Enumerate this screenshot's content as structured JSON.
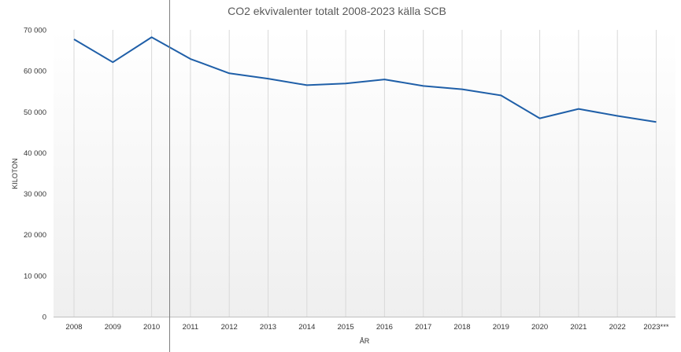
{
  "chart_data": {
    "type": "line",
    "title": "CO2 ekvivalenter totalt 2008-2023 källa SCB",
    "xlabel": "ÅR",
    "ylabel": "KILOTON",
    "categories": [
      "2008",
      "2009",
      "2010",
      "2011",
      "2012",
      "2013",
      "2014",
      "2015",
      "2016",
      "2017",
      "2018",
      "2019",
      "2020",
      "2021",
      "2022",
      "2023***"
    ],
    "series": [
      {
        "values": [
          67700,
          62100,
          68200,
          62900,
          59400,
          58100,
          56500,
          56900,
          57900,
          56300,
          55500,
          54000,
          48400,
          50700,
          49000,
          47500
        ]
      }
    ],
    "ylim": [
      0,
      70000
    ],
    "yticks": [
      0,
      10000,
      20000,
      30000,
      40000,
      50000,
      60000,
      70000
    ],
    "ytick_labels": [
      "0",
      "10 000",
      "20 000",
      "30 000",
      "40 000",
      "50 000",
      "60 000",
      "70 000"
    ],
    "grid": "vertical",
    "line_color": "#1f5fa8",
    "grid_color": "#d9d9d9",
    "background_gradient": [
      "#ffffff",
      "#f0f0f0"
    ]
  }
}
